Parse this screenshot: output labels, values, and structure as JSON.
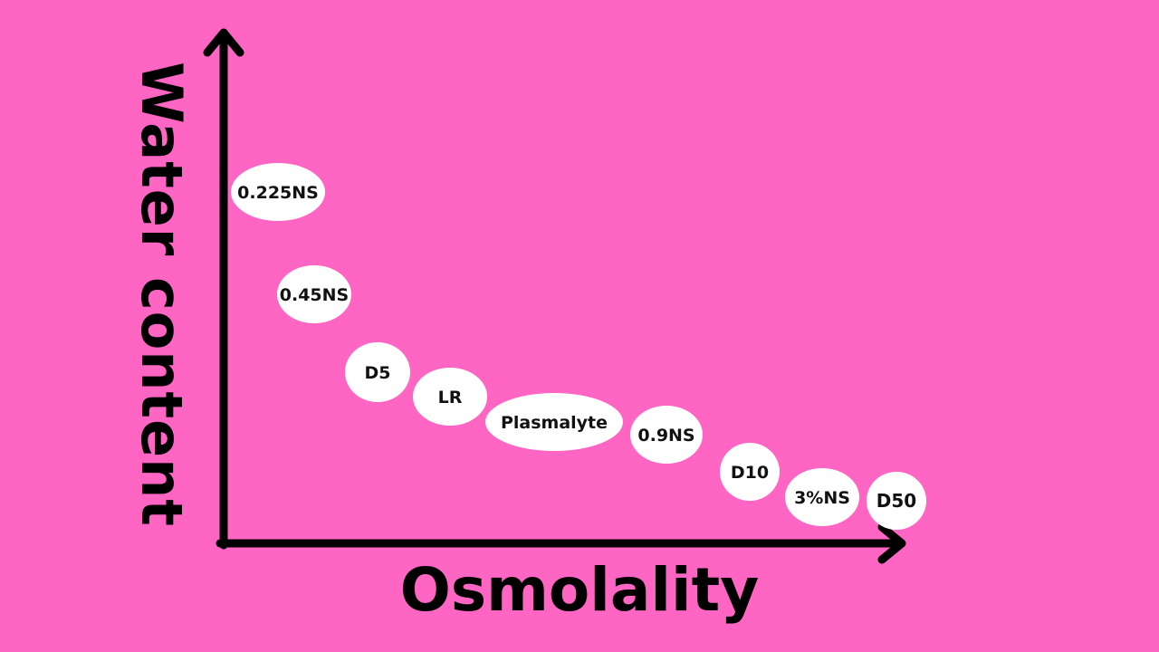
{
  "diagram": {
    "x_axis_label": "Osmolality",
    "y_axis_label": "Water content",
    "fluids": [
      {
        "label": "0.225NS"
      },
      {
        "label": "0.45NS"
      },
      {
        "label": "D5"
      },
      {
        "label": "LR"
      },
      {
        "label": "Plasmalyte"
      },
      {
        "label": "0.9NS"
      },
      {
        "label": "D10"
      },
      {
        "label": "3%NS"
      },
      {
        "label": "D50"
      }
    ]
  },
  "colors": {
    "background": "#ff66c4",
    "axis": "#000000",
    "bubble_fill": "#ffffff",
    "text": "#111111"
  }
}
